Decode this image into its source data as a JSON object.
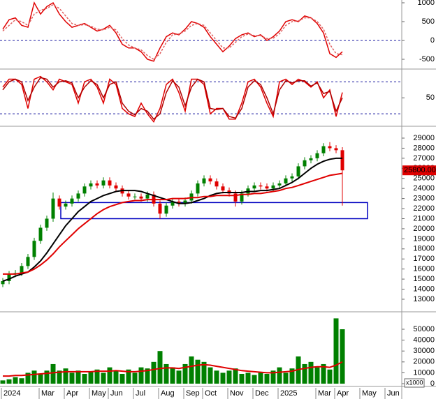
{
  "chart_data": [
    {
      "type": "line",
      "ylim": [
        -741,
        1074
      ],
      "yticks": [
        1000,
        500,
        0,
        -500
      ],
      "reference_lines": [
        0
      ],
      "reference_color": "#1a1aa0",
      "series": [
        {
          "color": "#e00000",
          "dashed": false,
          "values": [
            300,
            550,
            600,
            400,
            350,
            1000,
            700,
            900,
            1000,
            700,
            500,
            350,
            400,
            450,
            350,
            250,
            300,
            400,
            200,
            -100,
            -200,
            -200,
            -300,
            -500,
            -550,
            -200,
            100,
            200,
            150,
            300,
            500,
            450,
            350,
            100,
            -100,
            -300,
            -150,
            50,
            150,
            200,
            100,
            150,
            0,
            100,
            250,
            500,
            550,
            500,
            650,
            600,
            450,
            200,
            -350,
            -450,
            -300,
            null,
            null,
            null,
            null,
            null,
            null,
            null,
            null,
            null
          ]
        },
        {
          "color": "#e06060",
          "dashed": true,
          "values": [
            250,
            400,
            550,
            500,
            400,
            700,
            800,
            850,
            950,
            850,
            650,
            450,
            400,
            420,
            380,
            300,
            280,
            350,
            280,
            50,
            -120,
            -200,
            -250,
            -400,
            -500,
            -350,
            -50,
            150,
            170,
            250,
            400,
            450,
            400,
            200,
            0,
            -200,
            -200,
            -50,
            100,
            170,
            130,
            130,
            50,
            60,
            180,
            400,
            500,
            520,
            600,
            600,
            500,
            300,
            -100,
            -350,
            -380,
            null,
            null,
            null,
            null,
            null,
            null,
            null,
            null,
            null
          ]
        }
      ]
    },
    {
      "type": "line",
      "ylim": [
        -2,
        100
      ],
      "yticks": [
        50
      ],
      "reference_lines": [
        20,
        80
      ],
      "reference_color": "#1a1aa0",
      "series": [
        {
          "color": "#e00000",
          "dashed": false,
          "values": [
            70,
            85,
            85,
            75,
            30,
            85,
            90,
            80,
            65,
            85,
            80,
            75,
            40,
            80,
            85,
            70,
            40,
            85,
            75,
            30,
            20,
            15,
            40,
            20,
            5,
            30,
            75,
            85,
            60,
            25,
            85,
            85,
            75,
            20,
            30,
            30,
            10,
            10,
            40,
            80,
            85,
            70,
            40,
            15,
            80,
            85,
            75,
            85,
            80,
            70,
            80,
            50,
            65,
            15,
            60,
            null,
            null,
            null,
            null,
            null,
            null,
            null,
            null,
            null
          ]
        },
        {
          "color": "#b00000",
          "dashed": false,
          "values": [
            65,
            80,
            85,
            80,
            45,
            70,
            88,
            85,
            70,
            80,
            82,
            78,
            50,
            70,
            82,
            75,
            50,
            75,
            80,
            40,
            25,
            18,
            30,
            25,
            10,
            20,
            60,
            82,
            70,
            35,
            70,
            85,
            80,
            30,
            28,
            30,
            15,
            12,
            30,
            70,
            82,
            75,
            50,
            20,
            65,
            82,
            78,
            82,
            82,
            72,
            78,
            58,
            62,
            25,
            50,
            null,
            null,
            null,
            null,
            null,
            null,
            null,
            null,
            null
          ]
        }
      ]
    },
    {
      "type": "candlestick",
      "ylim": [
        11890,
        29970
      ],
      "yticks": [
        13000,
        14000,
        15000,
        16000,
        17000,
        18000,
        19000,
        20000,
        21000,
        22000,
        23000,
        24000,
        25000,
        26000,
        27000,
        28000,
        29000
      ],
      "up_color": "#008000",
      "down_color": "#e00000",
      "open": [
        14500,
        14800,
        15500,
        15600,
        16300,
        17200,
        18800,
        20100,
        21000,
        23000,
        22200,
        22500,
        23000,
        23500,
        24200,
        24500,
        24300,
        24800,
        24300,
        24000,
        23500,
        23200,
        23200,
        23000,
        23400,
        22500,
        21500,
        22300,
        22700,
        22500,
        22800,
        23500,
        24500,
        25000,
        24700,
        24200,
        23800,
        23500,
        22700,
        23500,
        24000,
        24300,
        24200,
        24000,
        24300,
        24500,
        25000,
        25200,
        26200,
        26800,
        27000,
        27500,
        28200,
        28000,
        27800,
        null,
        null,
        null,
        null,
        null,
        null,
        null,
        null,
        null
      ],
      "high": [
        15100,
        15800,
        15900,
        16600,
        17500,
        19100,
        20400,
        21300,
        23600,
        23300,
        22800,
        23300,
        23800,
        24500,
        24800,
        24800,
        25100,
        25100,
        24600,
        24300,
        23800,
        23500,
        23500,
        23700,
        23700,
        22800,
        22600,
        23000,
        23000,
        23100,
        23800,
        24800,
        25300,
        25300,
        25000,
        24500,
        24100,
        23800,
        23800,
        24300,
        24600,
        24600,
        24500,
        24600,
        24800,
        25300,
        25500,
        26500,
        27100,
        27300,
        27800,
        28500,
        28600,
        28300,
        28100,
        null,
        null,
        null,
        null,
        null,
        null,
        null,
        null,
        null
      ],
      "low": [
        14200,
        14500,
        15200,
        15300,
        16000,
        16900,
        18500,
        19800,
        20700,
        21900,
        21900,
        22200,
        22700,
        23200,
        23900,
        24000,
        24000,
        24000,
        23700,
        23200,
        22900,
        22900,
        22700,
        22700,
        22200,
        21000,
        21200,
        22000,
        22200,
        22200,
        22500,
        23200,
        24200,
        24400,
        23900,
        23500,
        23200,
        22200,
        22400,
        23200,
        23700,
        23900,
        23700,
        23700,
        24000,
        24200,
        24700,
        24900,
        25900,
        26500,
        26700,
        27200,
        27700,
        27500,
        22300,
        null,
        null,
        null,
        null,
        null,
        null,
        null,
        null,
        null
      ],
      "close": [
        14800,
        15500,
        15600,
        16300,
        17200,
        18800,
        20100,
        21000,
        23000,
        22200,
        22500,
        23000,
        23500,
        24200,
        24500,
        24300,
        24800,
        24300,
        24000,
        23500,
        23200,
        23200,
        23000,
        23400,
        22500,
        21500,
        22300,
        22700,
        22500,
        22800,
        23500,
        24500,
        25000,
        24700,
        24200,
        23800,
        23500,
        22700,
        23500,
        24000,
        24300,
        24200,
        24000,
        24300,
        24500,
        25000,
        25200,
        26200,
        26800,
        27000,
        27500,
        28200,
        28000,
        27800,
        25800,
        null,
        null,
        null,
        null,
        null,
        null,
        null,
        null,
        null
      ],
      "series": [
        {
          "color": "#000000",
          "values": [
            14800,
            15000,
            15300,
            15500,
            15700,
            16200,
            16800,
            17600,
            18500,
            19400,
            20300,
            21000,
            21700,
            22200,
            22700,
            23000,
            23300,
            23500,
            23700,
            23800,
            23800,
            23800,
            23700,
            23500,
            23300,
            23100,
            22900,
            22700,
            22500,
            22500,
            22600,
            22800,
            23000,
            23300,
            23500,
            23600,
            23600,
            23600,
            23600,
            23700,
            23700,
            23800,
            23800,
            23900,
            24000,
            24300,
            24600,
            25000,
            25500,
            26000,
            26400,
            26700,
            26900,
            27000,
            27000,
            null,
            null,
            null,
            null,
            null,
            null,
            null,
            null,
            null
          ]
        },
        {
          "color": "#e00000",
          "values": [
            15500,
            15500,
            15500,
            15600,
            15700,
            16000,
            16400,
            16900,
            17500,
            18200,
            18800,
            19400,
            20000,
            20500,
            21000,
            21500,
            21900,
            22200,
            22400,
            22600,
            22700,
            22800,
            22800,
            22900,
            22900,
            22900,
            22900,
            23000,
            23000,
            23000,
            23100,
            23100,
            23200,
            23200,
            23300,
            23300,
            23300,
            23300,
            23400,
            23400,
            23500,
            23500,
            23600,
            23700,
            23800,
            24000,
            24100,
            24300,
            24500,
            24700,
            24900,
            25100,
            25300,
            25400,
            25500,
            null,
            null,
            null,
            null,
            null,
            null,
            null,
            null,
            null
          ]
        }
      ],
      "support_zone": [
        21000,
        22600
      ],
      "zone_color": "#0000c0",
      "last_price": {
        "value": 25800,
        "label": "25800.00"
      }
    },
    {
      "type": "bar",
      "ylim": [
        -1900,
        64100
      ],
      "yticks": [
        0,
        10000,
        20000,
        30000,
        40000,
        50000
      ],
      "color": "#008000",
      "unit_label": "x1000",
      "values": [
        3000,
        4000,
        6000,
        5000,
        10000,
        12000,
        9000,
        12000,
        18000,
        12000,
        14000,
        10000,
        12000,
        9000,
        11000,
        13000,
        10000,
        15000,
        12000,
        9000,
        13000,
        10000,
        15000,
        14000,
        20000,
        30000,
        18000,
        15000,
        12000,
        18000,
        25000,
        22000,
        20000,
        15000,
        12000,
        10000,
        12000,
        14000,
        9000,
        10000,
        8000,
        10000,
        9000,
        12000,
        15000,
        10000,
        14000,
        25000,
        18000,
        20000,
        15000,
        18000,
        13000,
        60000,
        50000,
        null,
        null,
        null,
        null,
        null,
        null,
        null,
        null,
        null
      ],
      "series": [
        {
          "color": "#e00000",
          "values": [
            7000,
            7000,
            7500,
            7500,
            8000,
            8500,
            9000,
            9500,
            10000,
            10500,
            11000,
            11000,
            11000,
            11000,
            11000,
            11500,
            11500,
            11500,
            12000,
            11500,
            11000,
            11000,
            11500,
            12000,
            13000,
            14000,
            14500,
            14500,
            14000,
            15000,
            16000,
            17000,
            17500,
            17000,
            16000,
            15000,
            14000,
            13000,
            12000,
            11500,
            11000,
            10500,
            10000,
            10000,
            10500,
            11000,
            11500,
            13000,
            14000,
            15000,
            15500,
            15500,
            15000,
            17000,
            20000,
            null,
            null,
            null,
            null,
            null,
            null,
            null,
            null,
            null
          ]
        }
      ],
      "categories": [
        "2024",
        null,
        null,
        null,
        null,
        null,
        "Mar",
        null,
        null,
        null,
        "Apr",
        null,
        null,
        null,
        "May",
        null,
        null,
        "Jun",
        null,
        null,
        null,
        "Jul",
        null,
        null,
        null,
        "Aug",
        null,
        null,
        null,
        "Sep",
        null,
        null,
        "Oct",
        null,
        null,
        null,
        "Nov",
        null,
        null,
        null,
        "Dec",
        null,
        null,
        null,
        "2025",
        null,
        null,
        null,
        null,
        null,
        "Mar",
        null,
        null,
        "Apr",
        null,
        null,
        null,
        "May",
        null,
        null,
        null,
        "Jun",
        null,
        null
      ]
    }
  ]
}
